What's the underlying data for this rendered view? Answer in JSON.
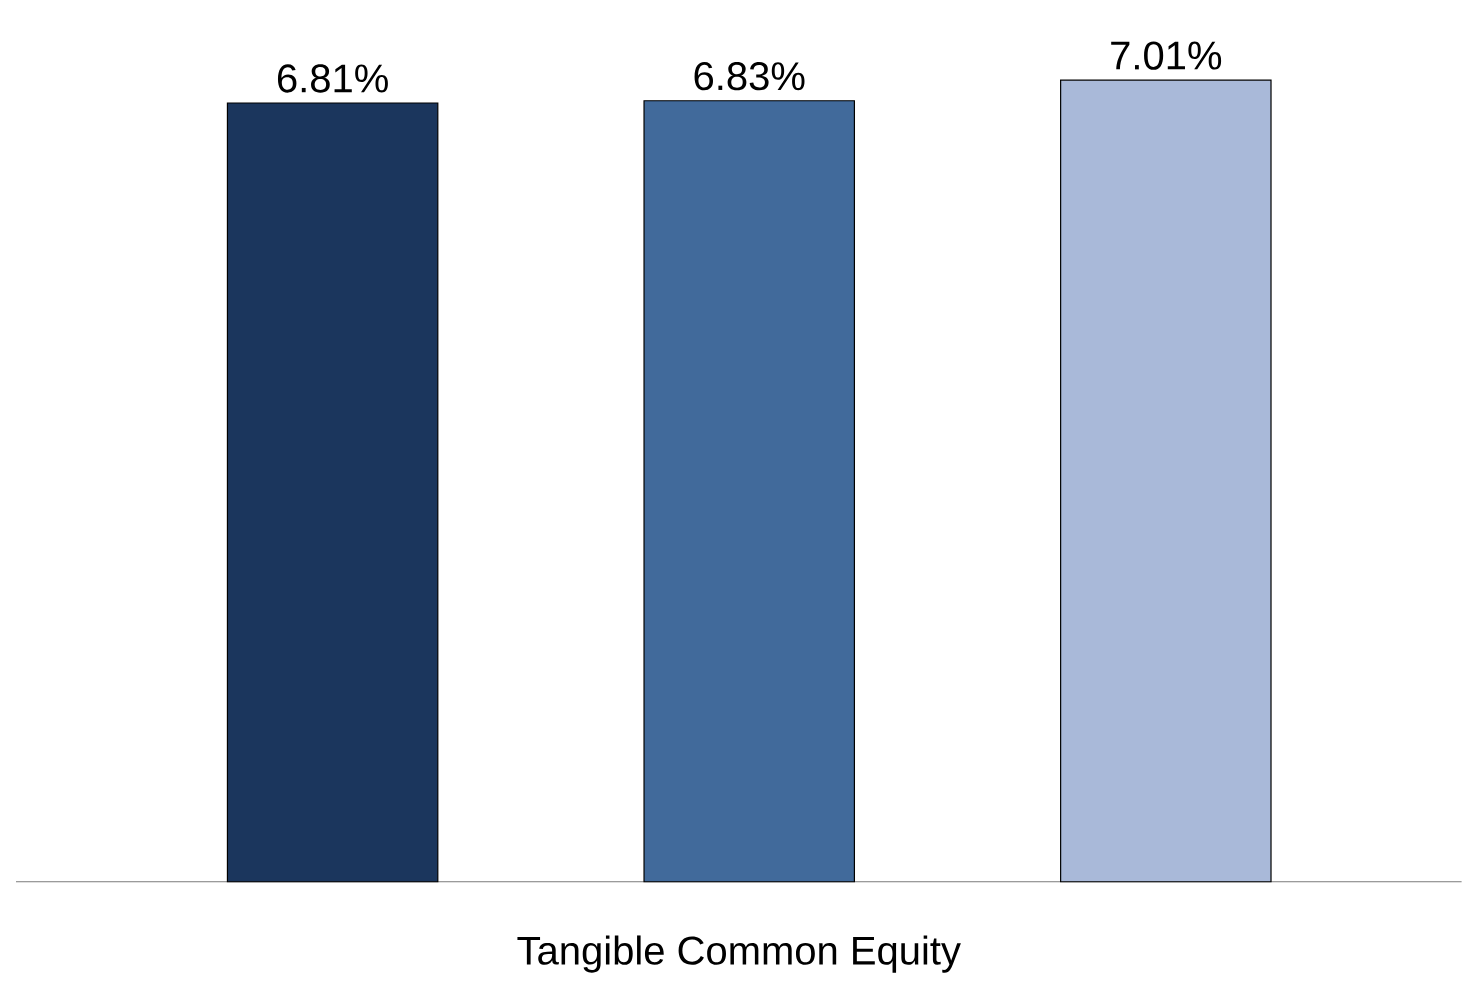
{
  "chart_data": {
    "type": "bar",
    "xlabel": "Tangible Common Equity",
    "categories": [
      null,
      null,
      null
    ],
    "values": [
      6.81,
      6.83,
      7.01
    ],
    "colors": [
      "#1b365d",
      "#416a9b",
      "#a9b9d9"
    ],
    "value_labels": [
      "6.81%",
      "6.83%",
      "7.01%"
    ],
    "tick_labels": false
  }
}
